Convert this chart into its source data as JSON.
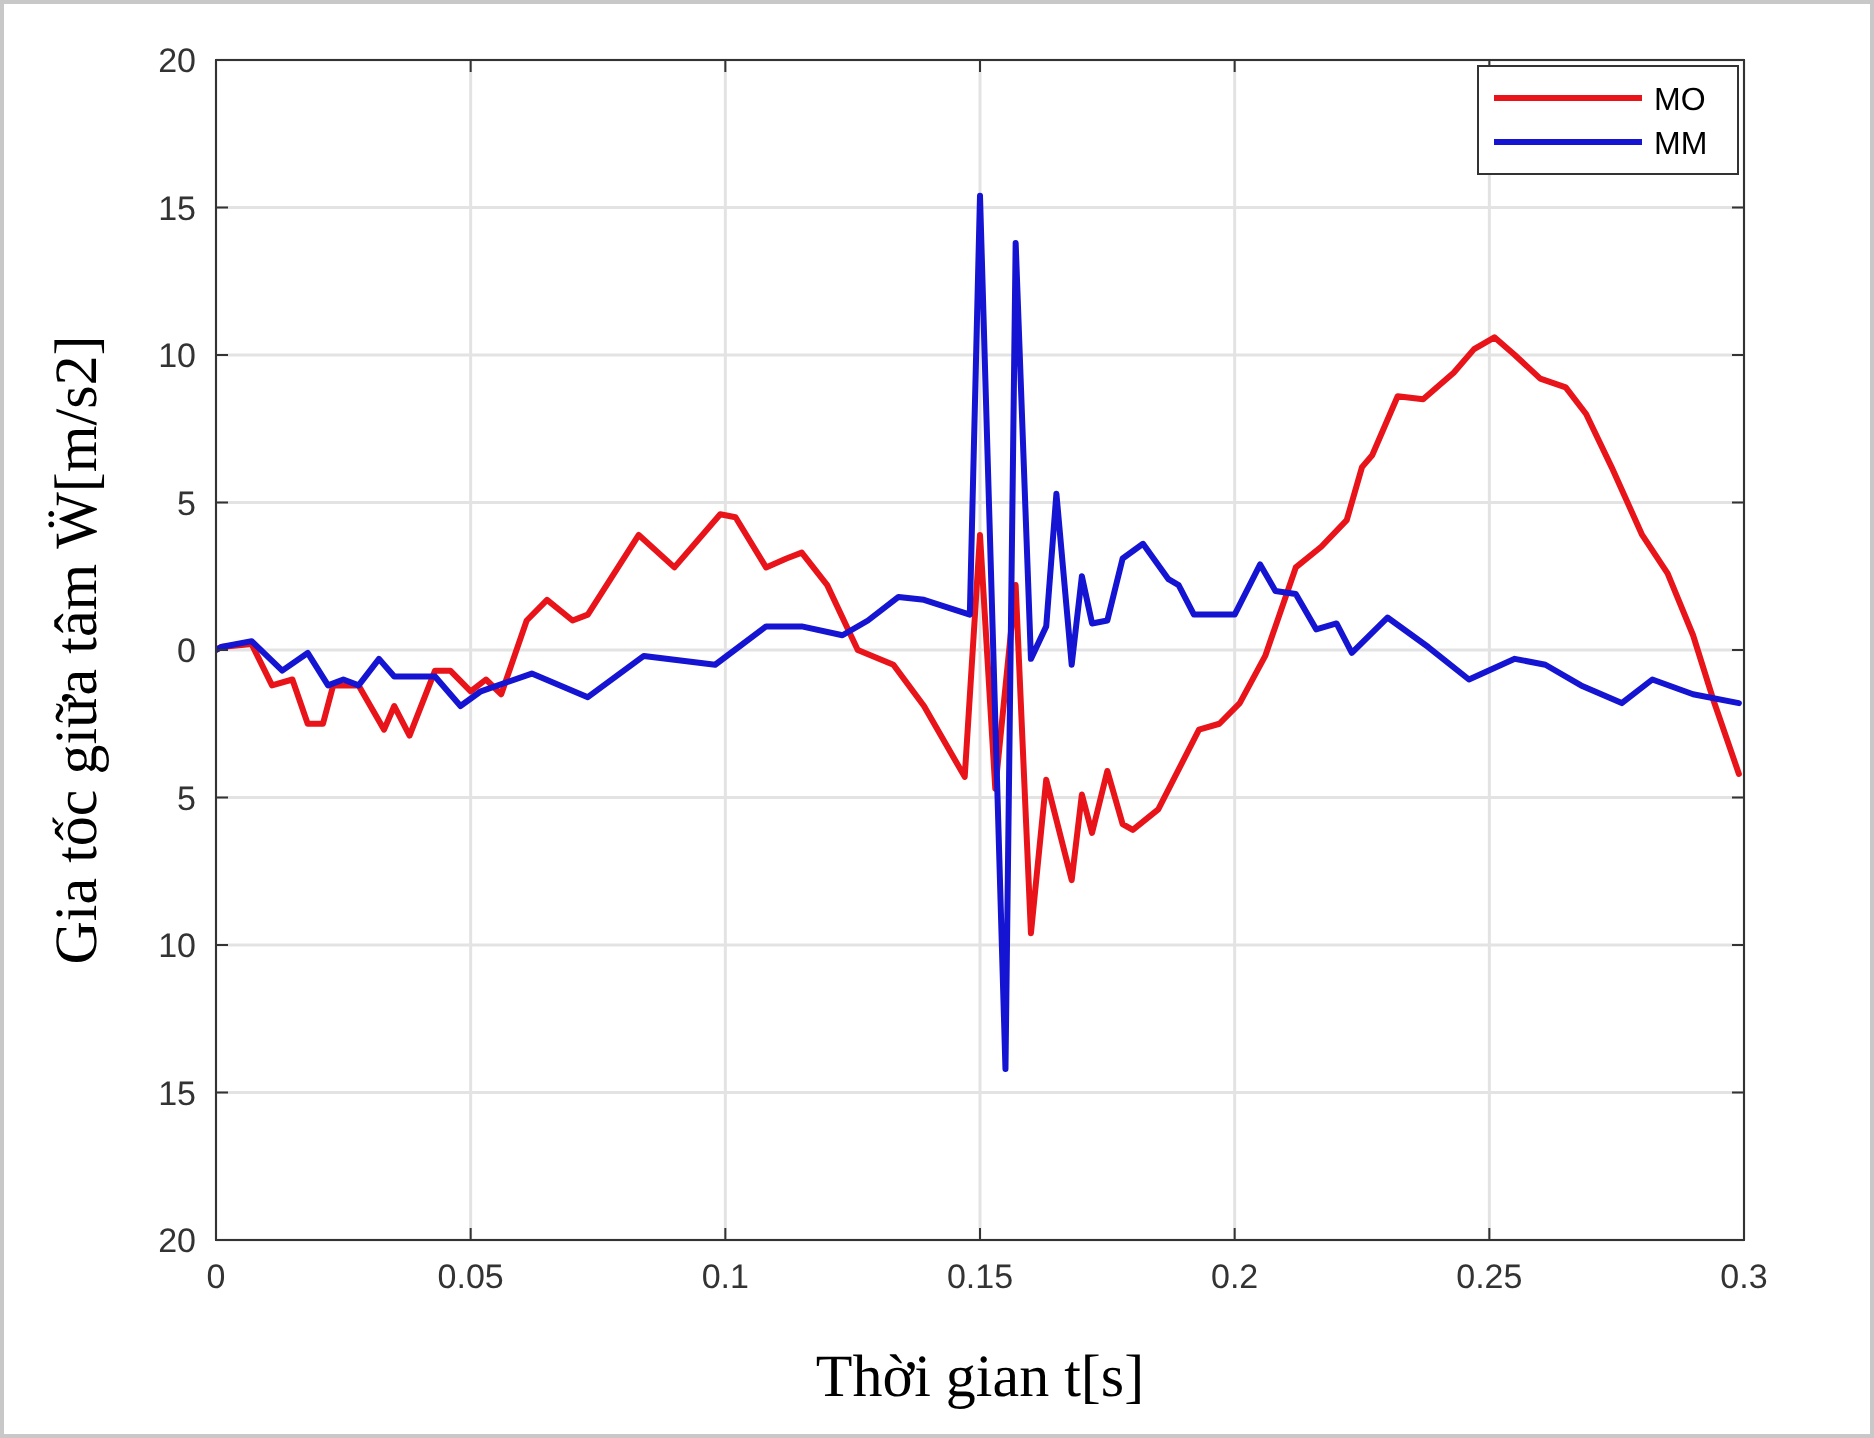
{
  "chart_data": {
    "type": "line",
    "xlabel": "Thời gian t[s]",
    "ylabel": "Gia tốc giữa tâm Ẅ[m/s2]",
    "xlim": [
      0,
      0.3
    ],
    "xticks": [
      0,
      0.05,
      0.1,
      0.15,
      0.2,
      0.25,
      0.3
    ],
    "ylim": [
      -20,
      20
    ],
    "yticks": [
      {
        "value": -20,
        "label": "20"
      },
      {
        "value": -15,
        "label": "15"
      },
      {
        "value": -10,
        "label": "10"
      },
      {
        "value": -5,
        "label": "5"
      },
      0,
      5,
      10,
      15,
      20
    ],
    "grid": true,
    "legend": "top right",
    "line_style": "solid",
    "series": [
      {
        "name": "MO",
        "color": "#e8141a",
        "x": [
          0,
          0.001,
          0.007,
          0.011,
          0.015,
          0.018,
          0.021,
          0.023,
          0.028,
          0.033,
          0.035,
          0.038,
          0.043,
          0.046,
          0.05,
          0.053,
          0.056,
          0.061,
          0.065,
          0.07,
          0.073,
          0.083,
          0.09,
          0.099,
          0.102,
          0.108,
          0.112,
          0.115,
          0.12,
          0.126,
          0.133,
          0.139,
          0.147,
          0.15,
          0.153,
          0.157,
          0.16,
          0.163,
          0.168,
          0.17,
          0.172,
          0.175,
          0.178,
          0.18,
          0.185,
          0.193,
          0.197,
          0.201,
          0.206,
          0.212,
          0.217,
          0.222,
          0.225,
          0.227,
          0.232,
          0.237,
          0.243,
          0.247,
          0.251,
          0.255,
          0.26,
          0.265,
          0.269,
          0.274,
          0.28,
          0.285,
          0.29,
          0.294,
          0.299
        ],
        "values": [
          0,
          0.1,
          0.2,
          -1.2,
          -1.0,
          -2.5,
          -2.5,
          -1.2,
          -1.2,
          -2.7,
          -1.9,
          -2.9,
          -0.7,
          -0.7,
          -1.4,
          -1.0,
          -1.5,
          1.0,
          1.7,
          1.0,
          1.2,
          3.9,
          2.8,
          4.6,
          4.5,
          2.8,
          3.1,
          3.3,
          2.2,
          0.0,
          -0.5,
          -1.9,
          -4.3,
          3.9,
          -4.7,
          2.2,
          -9.6,
          -4.4,
          -7.8,
          -4.9,
          -6.2,
          -4.1,
          -5.9,
          -6.1,
          -5.4,
          -2.7,
          -2.5,
          -1.8,
          -0.2,
          2.8,
          3.5,
          4.4,
          6.2,
          6.6,
          8.6,
          8.5,
          9.4,
          10.2,
          10.6,
          10.0,
          9.2,
          8.9,
          8.0,
          6.2,
          3.9,
          2.6,
          0.5,
          -1.7,
          -4.2
        ]
      },
      {
        "name": "MM",
        "color": "#1414d2",
        "x": [
          0,
          0.001,
          0.007,
          0.013,
          0.018,
          0.022,
          0.025,
          0.028,
          0.032,
          0.035,
          0.043,
          0.048,
          0.052,
          0.062,
          0.073,
          0.084,
          0.098,
          0.108,
          0.115,
          0.123,
          0.128,
          0.134,
          0.139,
          0.148,
          0.15,
          0.155,
          0.157,
          0.16,
          0.163,
          0.165,
          0.168,
          0.17,
          0.172,
          0.175,
          0.178,
          0.182,
          0.187,
          0.189,
          0.192,
          0.2,
          0.205,
          0.208,
          0.212,
          0.216,
          0.22,
          0.223,
          0.23,
          0.238,
          0.246,
          0.255,
          0.261,
          0.268,
          0.276,
          0.282,
          0.29,
          0.299
        ],
        "values": [
          0,
          0.1,
          0.3,
          -0.7,
          -0.1,
          -1.2,
          -1.0,
          -1.2,
          -0.3,
          -0.9,
          -0.9,
          -1.9,
          -1.4,
          -0.8,
          -1.6,
          -0.2,
          -0.5,
          0.8,
          0.8,
          0.5,
          1.0,
          1.8,
          1.7,
          1.2,
          15.4,
          -14.2,
          13.8,
          -0.3,
          0.8,
          5.3,
          -0.5,
          2.5,
          0.9,
          1.0,
          3.1,
          3.6,
          2.4,
          2.2,
          1.2,
          1.2,
          2.9,
          2.0,
          1.9,
          0.7,
          0.9,
          -0.1,
          1.1,
          0.1,
          -1.0,
          -0.3,
          -0.5,
          -1.2,
          -1.8,
          -1.0,
          -1.5,
          -1.8
        ]
      }
    ]
  }
}
